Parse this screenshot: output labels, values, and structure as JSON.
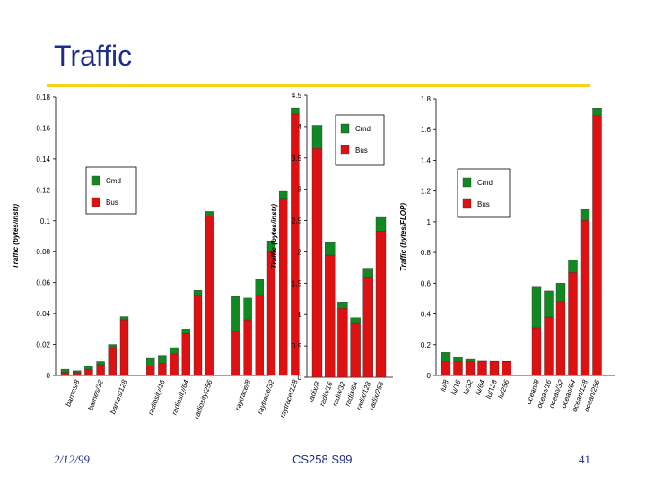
{
  "slide": {
    "title": "Traffic",
    "footer_date": "2/12/99",
    "footer_course": "CS258 S99",
    "footer_page": "41"
  },
  "colors": {
    "bus": "#dd1111",
    "cmd": "#118822"
  },
  "chart_data": [
    {
      "type": "bar",
      "stacked": true,
      "ylabel": "Traffic (bytes/instr)",
      "ylim": [
        0,
        0.18
      ],
      "yticks": [
        0,
        0.02,
        0.04,
        0.06,
        0.08,
        0.1,
        0.12,
        0.14,
        0.16,
        0.18
      ],
      "ytick_labels": [
        "0",
        "0.02",
        "0.04",
        "0.06",
        "0.08",
        "0.1",
        "0.12",
        "0.14",
        "0.16",
        "0.18"
      ],
      "legend": [
        "Cmd",
        "Bus"
      ],
      "legend_position": "left",
      "groups": [
        {
          "labels": [
            "barnes/8",
            "barnes/32",
            "barnes/128"
          ],
          "values": [
            {
              "bus": 0.002,
              "cmd": 0.002
            },
            {
              "bus": 0.002,
              "cmd": 0.001
            },
            {
              "bus": 0.004,
              "cmd": 0.002
            },
            {
              "bus": 0.007,
              "cmd": 0.002
            },
            {
              "bus": 0.018,
              "cmd": 0.002
            },
            {
              "bus": 0.036,
              "cmd": 0.002
            }
          ]
        },
        {
          "labels": [
            "radiosity/16",
            "radiosity/64",
            "radiosity/256"
          ],
          "values": [
            {
              "bus": 0.006,
              "cmd": 0.005
            },
            {
              "bus": 0.008,
              "cmd": 0.005
            },
            {
              "bus": 0.014,
              "cmd": 0.004
            },
            {
              "bus": 0.027,
              "cmd": 0.003
            },
            {
              "bus": 0.052,
              "cmd": 0.003
            },
            {
              "bus": 0.103,
              "cmd": 0.003
            }
          ]
        },
        {
          "labels": [
            "raytrace/8",
            "raytrace/32",
            "raytrace/128"
          ],
          "values": [
            {
              "bus": 0.028,
              "cmd": 0.023
            },
            {
              "bus": 0.036,
              "cmd": 0.014
            },
            {
              "bus": 0.052,
              "cmd": 0.01
            },
            {
              "bus": 0.08,
              "cmd": 0.007
            },
            {
              "bus": 0.114,
              "cmd": 0.005
            },
            {
              "bus": 0.169,
              "cmd": 0.004
            }
          ]
        }
      ]
    },
    {
      "type": "bar",
      "stacked": true,
      "ylabel": "Traffic (bytes/instr)",
      "ylim": [
        0,
        4.5
      ],
      "yticks": [
        0,
        0.5,
        1,
        1.5,
        2,
        2.5,
        3,
        3.5,
        4,
        4.5
      ],
      "ytick_labels": [
        "0",
        "0.5",
        "1",
        "1.5",
        "2",
        "2.5",
        "3",
        "3.5",
        "4",
        "4.5"
      ],
      "legend": [
        "Cmd",
        "Bus"
      ],
      "legend_position": "top-right",
      "groups": [
        {
          "labels": [
            "radix/8",
            "radix/16",
            "radix/32",
            "radix/64",
            "radix/128",
            "radix/256"
          ],
          "values": [
            {
              "bus": 3.65,
              "cmd": 0.37
            },
            {
              "bus": 1.95,
              "cmd": 0.2
            },
            {
              "bus": 1.1,
              "cmd": 0.1
            },
            {
              "bus": 0.86,
              "cmd": 0.09
            },
            {
              "bus": 1.6,
              "cmd": 0.14
            },
            {
              "bus": 2.33,
              "cmd": 0.22
            }
          ]
        }
      ]
    },
    {
      "type": "bar",
      "stacked": true,
      "ylabel": "Traffic (bytes/FLOP)",
      "ylim": [
        0,
        1.8
      ],
      "yticks": [
        0,
        0.2,
        0.4,
        0.6,
        0.8,
        1,
        1.2,
        1.4,
        1.6,
        1.8
      ],
      "ytick_labels": [
        "0",
        "0.2",
        "0.4",
        "0.6",
        "0.8",
        "1",
        "1.2",
        "1.4",
        "1.6",
        "1.8"
      ],
      "legend": [
        "Cmd",
        "Bus"
      ],
      "legend_position": "top-left",
      "groups": [
        {
          "labels": [
            "lu/8",
            "lu/16",
            "lu/32",
            "lu/64",
            "lu/128",
            "lu/256"
          ],
          "values": [
            {
              "bus": 0.09,
              "cmd": 0.06
            },
            {
              "bus": 0.09,
              "cmd": 0.025
            },
            {
              "bus": 0.09,
              "cmd": 0.015
            },
            {
              "bus": 0.09,
              "cmd": 0.004
            },
            {
              "bus": 0.09,
              "cmd": 0.003
            },
            {
              "bus": 0.09,
              "cmd": 0.002
            }
          ]
        },
        {
          "labels": [
            "ocean/8",
            "ocean/16",
            "ocean/32",
            "ocean/64",
            "ocean/128",
            "ocean/256"
          ],
          "values": [
            {
              "bus": 0.31,
              "cmd": 0.27
            },
            {
              "bus": 0.38,
              "cmd": 0.17
            },
            {
              "bus": 0.48,
              "cmd": 0.12
            },
            {
              "bus": 0.67,
              "cmd": 0.08
            },
            {
              "bus": 1.01,
              "cmd": 0.07
            },
            {
              "bus": 1.69,
              "cmd": 0.05
            }
          ]
        }
      ]
    }
  ]
}
